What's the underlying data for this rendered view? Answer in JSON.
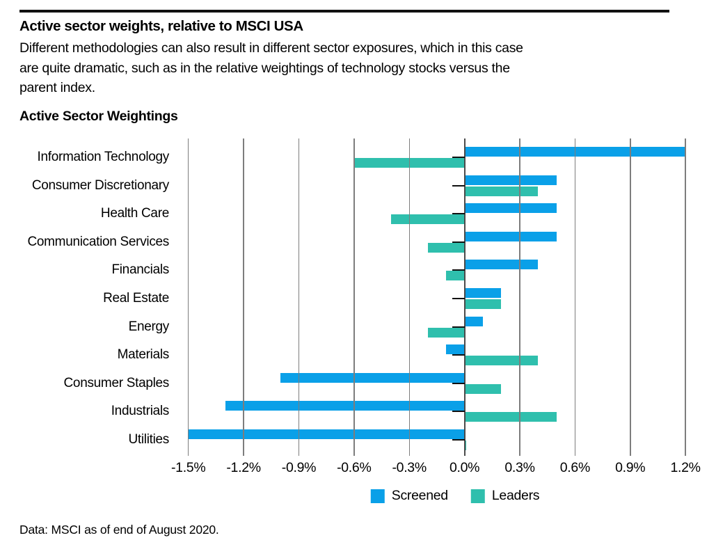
{
  "header": {
    "title": "Active sector weights, relative to MSCI USA",
    "description_lines": [
      "Different methodologies can also result in different sector exposures, which in this case",
      "are quite dramatic, such as in the relative weightings of technology stocks versus the",
      "parent index."
    ],
    "chart_title": "Active Sector Weightings"
  },
  "chart_data": {
    "type": "bar",
    "orientation": "horizontal",
    "title": "Active Sector Weightings",
    "xlabel": "",
    "ylabel": "",
    "unit": "%",
    "xlim": [
      -1.5,
      1.2
    ],
    "grid": true,
    "legend_position": "bottom",
    "categories": [
      "Information Technology",
      "Consumer Discretionary",
      "Health Care",
      "Communication Services",
      "Financials",
      "Real Estate",
      "Energy",
      "Materials",
      "Consumer Staples",
      "Industrials",
      "Utilities"
    ],
    "series": [
      {
        "name": "Screened",
        "color": "#0aa0e8",
        "values": [
          1.2,
          0.5,
          0.5,
          0.5,
          0.4,
          0.2,
          0.1,
          -0.1,
          -1.0,
          -1.3,
          -1.5
        ]
      },
      {
        "name": "Leaders",
        "color": "#2fbfad",
        "values": [
          -0.6,
          0.4,
          -0.4,
          -0.2,
          -0.1,
          0.2,
          -0.2,
          0.4,
          0.2,
          0.5,
          0.01
        ]
      }
    ],
    "x_ticks": [
      -1.5,
      -1.2,
      -0.9,
      -0.6,
      -0.3,
      0.0,
      0.3,
      0.6,
      0.9,
      1.2
    ],
    "x_tick_labels": [
      "-1.5%",
      "-1.2%",
      "-0.9%",
      "-0.6%",
      "-0.3%",
      "0.0%",
      "0.3%",
      "0.6%",
      "0.9%",
      "1.2%"
    ],
    "colors": {
      "zero_axis": "#4a4a4a",
      "gridline": "#7d7d7d",
      "tick": "#111111"
    }
  },
  "footer": {
    "source": "Data: MSCI as of end of August 2020."
  }
}
